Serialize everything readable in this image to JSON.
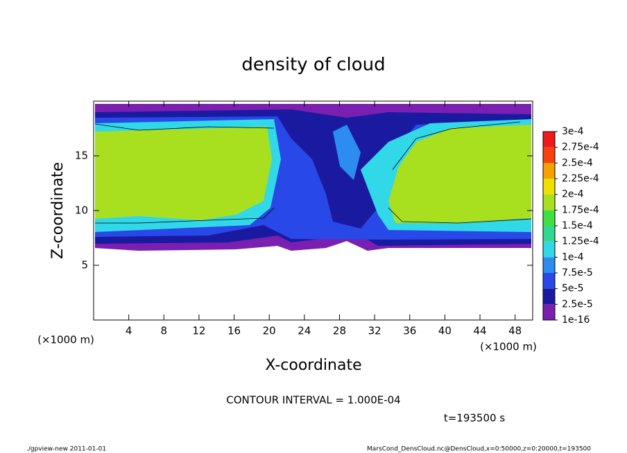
{
  "chart_data": {
    "type": "contour",
    "title": "density of cloud",
    "xlabel": "X-coordinate",
    "ylabel": "Z-coordinate",
    "x_unit": "(×1000 m)",
    "xlim": [
      0,
      50
    ],
    "xticks": [
      4,
      8,
      12,
      16,
      20,
      24,
      28,
      32,
      36,
      40,
      44,
      48
    ],
    "ylim": [
      0,
      20
    ],
    "yticks": [
      5,
      10,
      15
    ],
    "contour_interval": "CONTOUR INTERVAL = 1.000E-04",
    "time": "t=193500 s",
    "footer_left": "./gpview-new   2011-01-01",
    "footer_right": "MarsCond_DensCloud.nc@DensCloud,x=0:50000,z=0:20000,t=193500",
    "colorbar": {
      "levels": [
        {
          "value": 1e-16,
          "label": "1e-16"
        },
        {
          "value": 2.5e-05,
          "label": "2.5e-5"
        },
        {
          "value": 5e-05,
          "label": "5e-5"
        },
        {
          "value": 7.5e-05,
          "label": "7.5e-5"
        },
        {
          "value": 0.0001,
          "label": "1e-4"
        },
        {
          "value": 0.000125,
          "label": "1.25e-4"
        },
        {
          "value": 0.00015,
          "label": "1.5e-4"
        },
        {
          "value": 0.000175,
          "label": "1.75e-4"
        },
        {
          "value": 0.0002,
          "label": "2e-4"
        },
        {
          "value": 0.000225,
          "label": "2.25e-4"
        },
        {
          "value": 0.00025,
          "label": "2.5e-4"
        },
        {
          "value": 0.000275,
          "label": "2.75e-4"
        },
        {
          "value": 0.0003,
          "label": "3e-4"
        }
      ],
      "colors": [
        "#7a1fb0",
        "#1a1aa0",
        "#2848e8",
        "#2c8cf0",
        "#30d8e8",
        "#30d890",
        "#40e040",
        "#a8e020",
        "#f0e000",
        "#f8a000",
        "#f84010",
        "#f01818"
      ]
    }
  }
}
